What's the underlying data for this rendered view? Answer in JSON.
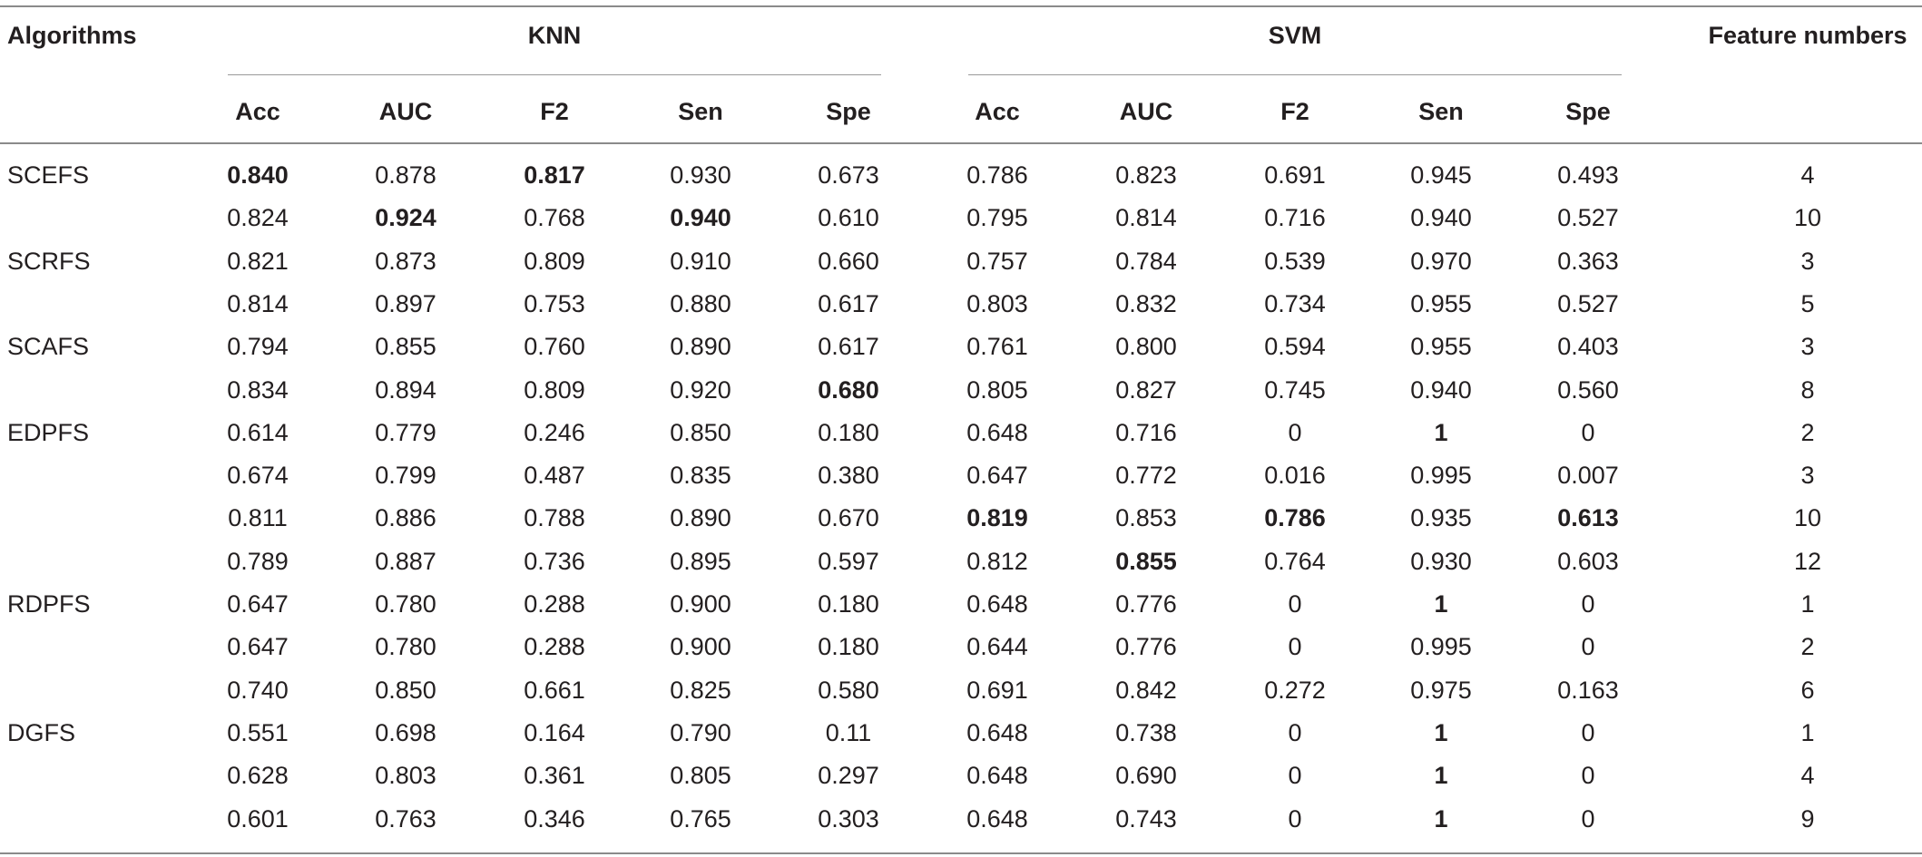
{
  "table": {
    "header": {
      "algorithms": "Algorithms",
      "knn": "KNN",
      "svm": "SVM",
      "feature_numbers": "Feature numbers",
      "metrics": [
        "Acc",
        "AUC",
        "F2",
        "Sen",
        "Spe"
      ]
    },
    "rows": [
      {
        "alg": "SCEFS",
        "knn": [
          "0.840",
          "0.878",
          "0.817",
          "0.930",
          "0.673"
        ],
        "svm": [
          "0.786",
          "0.823",
          "0.691",
          "0.945",
          "0.493"
        ],
        "fn": "4",
        "bold_knn": [
          true,
          false,
          true,
          false,
          false
        ],
        "bold_svm": [
          false,
          false,
          false,
          false,
          false
        ]
      },
      {
        "alg": "",
        "knn": [
          "0.824",
          "0.924",
          "0.768",
          "0.940",
          "0.610"
        ],
        "svm": [
          "0.795",
          "0.814",
          "0.716",
          "0.940",
          "0.527"
        ],
        "fn": "10",
        "bold_knn": [
          false,
          true,
          false,
          true,
          false
        ],
        "bold_svm": [
          false,
          false,
          false,
          false,
          false
        ]
      },
      {
        "alg": "SCRFS",
        "knn": [
          "0.821",
          "0.873",
          "0.809",
          "0.910",
          "0.660"
        ],
        "svm": [
          "0.757",
          "0.784",
          "0.539",
          "0.970",
          "0.363"
        ],
        "fn": "3",
        "bold_knn": [
          false,
          false,
          false,
          false,
          false
        ],
        "bold_svm": [
          false,
          false,
          false,
          false,
          false
        ]
      },
      {
        "alg": "",
        "knn": [
          "0.814",
          "0.897",
          "0.753",
          "0.880",
          "0.617"
        ],
        "svm": [
          "0.803",
          "0.832",
          "0.734",
          "0.955",
          "0.527"
        ],
        "fn": "5",
        "bold_knn": [
          false,
          false,
          false,
          false,
          false
        ],
        "bold_svm": [
          false,
          false,
          false,
          false,
          false
        ]
      },
      {
        "alg": "SCAFS",
        "knn": [
          "0.794",
          "0.855",
          "0.760",
          "0.890",
          "0.617"
        ],
        "svm": [
          "0.761",
          "0.800",
          "0.594",
          "0.955",
          "0.403"
        ],
        "fn": "3",
        "bold_knn": [
          false,
          false,
          false,
          false,
          false
        ],
        "bold_svm": [
          false,
          false,
          false,
          false,
          false
        ]
      },
      {
        "alg": "",
        "knn": [
          "0.834",
          "0.894",
          "0.809",
          "0.920",
          "0.680"
        ],
        "svm": [
          "0.805",
          "0.827",
          "0.745",
          "0.940",
          "0.560"
        ],
        "fn": "8",
        "bold_knn": [
          false,
          false,
          false,
          false,
          true
        ],
        "bold_svm": [
          false,
          false,
          false,
          false,
          false
        ]
      },
      {
        "alg": "EDPFS",
        "knn": [
          "0.614",
          "0.779",
          "0.246",
          "0.850",
          "0.180"
        ],
        "svm": [
          "0.648",
          "0.716",
          "0",
          "1",
          "0"
        ],
        "fn": "2",
        "bold_knn": [
          false,
          false,
          false,
          false,
          false
        ],
        "bold_svm": [
          false,
          false,
          false,
          true,
          false
        ]
      },
      {
        "alg": "",
        "knn": [
          "0.674",
          "0.799",
          "0.487",
          "0.835",
          "0.380"
        ],
        "svm": [
          "0.647",
          "0.772",
          "0.016",
          "0.995",
          "0.007"
        ],
        "fn": "3",
        "bold_knn": [
          false,
          false,
          false,
          false,
          false
        ],
        "bold_svm": [
          false,
          false,
          false,
          false,
          false
        ]
      },
      {
        "alg": "",
        "knn": [
          "0.811",
          "0.886",
          "0.788",
          "0.890",
          "0.670"
        ],
        "svm": [
          "0.819",
          "0.853",
          "0.786",
          "0.935",
          "0.613"
        ],
        "fn": "10",
        "bold_knn": [
          false,
          false,
          false,
          false,
          false
        ],
        "bold_svm": [
          true,
          false,
          true,
          false,
          true
        ]
      },
      {
        "alg": "",
        "knn": [
          "0.789",
          "0.887",
          "0.736",
          "0.895",
          "0.597"
        ],
        "svm": [
          "0.812",
          "0.855",
          "0.764",
          "0.930",
          "0.603"
        ],
        "fn": "12",
        "bold_knn": [
          false,
          false,
          false,
          false,
          false
        ],
        "bold_svm": [
          false,
          true,
          false,
          false,
          false
        ]
      },
      {
        "alg": "RDPFS",
        "knn": [
          "0.647",
          "0.780",
          "0.288",
          "0.900",
          "0.180"
        ],
        "svm": [
          "0.648",
          "0.776",
          "0",
          "1",
          "0"
        ],
        "fn": "1",
        "bold_knn": [
          false,
          false,
          false,
          false,
          false
        ],
        "bold_svm": [
          false,
          false,
          false,
          true,
          false
        ]
      },
      {
        "alg": "",
        "knn": [
          "0.647",
          "0.780",
          "0.288",
          "0.900",
          "0.180"
        ],
        "svm": [
          "0.644",
          "0.776",
          "0",
          "0.995",
          "0"
        ],
        "fn": "2",
        "bold_knn": [
          false,
          false,
          false,
          false,
          false
        ],
        "bold_svm": [
          false,
          false,
          false,
          false,
          false
        ]
      },
      {
        "alg": "",
        "knn": [
          "0.740",
          "0.850",
          "0.661",
          "0.825",
          "0.580"
        ],
        "svm": [
          "0.691",
          "0.842",
          "0.272",
          "0.975",
          "0.163"
        ],
        "fn": "6",
        "bold_knn": [
          false,
          false,
          false,
          false,
          false
        ],
        "bold_svm": [
          false,
          false,
          false,
          false,
          false
        ]
      },
      {
        "alg": "DGFS",
        "knn": [
          "0.551",
          "0.698",
          "0.164",
          "0.790",
          "0.11"
        ],
        "svm": [
          "0.648",
          "0.738",
          "0",
          "1",
          "0"
        ],
        "fn": "1",
        "bold_knn": [
          false,
          false,
          false,
          false,
          false
        ],
        "bold_svm": [
          false,
          false,
          false,
          true,
          false
        ]
      },
      {
        "alg": "",
        "knn": [
          "0.628",
          "0.803",
          "0.361",
          "0.805",
          "0.297"
        ],
        "svm": [
          "0.648",
          "0.690",
          "0",
          "1",
          "0"
        ],
        "fn": "4",
        "bold_knn": [
          false,
          false,
          false,
          false,
          false
        ],
        "bold_svm": [
          false,
          false,
          false,
          true,
          false
        ]
      },
      {
        "alg": "",
        "knn": [
          "0.601",
          "0.763",
          "0.346",
          "0.765",
          "0.303"
        ],
        "svm": [
          "0.648",
          "0.743",
          "0",
          "1",
          "0"
        ],
        "fn": "9",
        "bold_knn": [
          false,
          false,
          false,
          false,
          false
        ],
        "bold_svm": [
          false,
          false,
          false,
          true,
          false
        ]
      }
    ]
  }
}
